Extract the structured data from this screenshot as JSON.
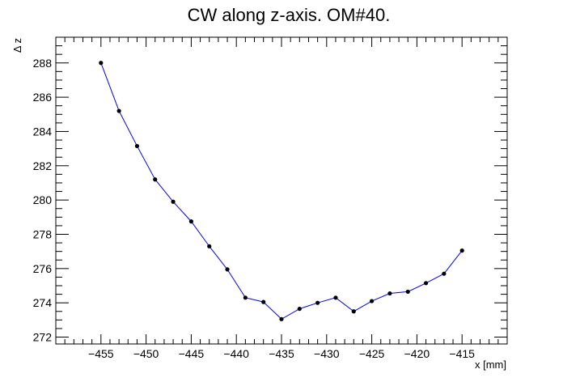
{
  "chart_data": {
    "type": "line",
    "title": "CW along z-axis. OM#40.",
    "xlabel": "x [mm]",
    "ylabel": "Δ z",
    "xlim": [
      -460,
      -410
    ],
    "ylim": [
      271.6,
      289.5
    ],
    "xticks": [
      -455,
      -450,
      -445,
      -440,
      -435,
      -430,
      -425,
      -420,
      -415
    ],
    "yticks": [
      272,
      274,
      276,
      278,
      280,
      282,
      284,
      286,
      288
    ],
    "grid": false,
    "legend": "none",
    "line_color": "#0000ff",
    "marker_color": "#000000",
    "series": [
      {
        "x": [
          -455,
          -453,
          -451,
          -449,
          -447,
          -445,
          -443,
          -441,
          -439,
          -437,
          -435,
          -433,
          -431,
          -429,
          -427,
          -425,
          -423,
          -421,
          -419,
          -417,
          -415
        ],
        "y": [
          288.0,
          285.2,
          283.15,
          281.2,
          279.9,
          278.75,
          277.3,
          275.95,
          274.3,
          274.05,
          273.05,
          273.65,
          274.0,
          274.3,
          273.5,
          274.1,
          274.55,
          274.65,
          275.15,
          275.7,
          277.05
        ]
      }
    ]
  }
}
